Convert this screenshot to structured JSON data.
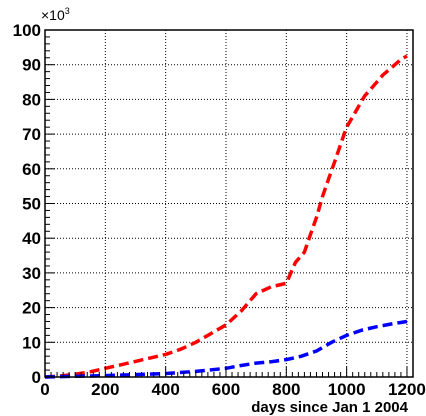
{
  "chart_data": {
    "type": "line",
    "title": "",
    "xlabel": "days since Jan 1 2004",
    "ylabel": "",
    "y_multiplier": {
      "base": "×10",
      "exponent": "3"
    },
    "xlim": [
      0,
      1220
    ],
    "ylim": [
      0,
      100
    ],
    "x_ticks": [
      0,
      200,
      400,
      600,
      800,
      1000,
      1200
    ],
    "y_ticks": [
      0,
      10,
      20,
      30,
      40,
      50,
      60,
      70,
      80,
      90,
      100
    ],
    "grid": true,
    "series": [
      {
        "color": "#ff0000",
        "x": [
          0,
          50,
          100,
          150,
          200,
          250,
          300,
          350,
          400,
          450,
          500,
          550,
          600,
          650,
          700,
          750,
          800,
          830,
          860,
          880,
          900,
          920,
          940,
          960,
          980,
          1000,
          1020,
          1040,
          1060,
          1080,
          1100,
          1120,
          1140,
          1160,
          1180,
          1200
        ],
        "values": [
          0,
          0.3,
          0.8,
          1.5,
          2.5,
          3.5,
          4.5,
          5.5,
          6.5,
          8,
          10,
          12.5,
          15,
          19,
          24,
          26,
          27,
          33,
          36,
          41,
          46,
          52,
          57,
          62,
          67,
          72,
          75,
          78,
          81,
          83,
          85,
          87,
          88.5,
          90,
          91.5,
          92.5
        ]
      },
      {
        "color": "#0000ff",
        "x": [
          0,
          100,
          200,
          300,
          400,
          500,
          600,
          650,
          700,
          750,
          800,
          850,
          900,
          950,
          1000,
          1050,
          1100,
          1150,
          1200
        ],
        "values": [
          0,
          0.2,
          0.4,
          0.7,
          1,
          1.6,
          2.5,
          3.3,
          4,
          4.4,
          5,
          6,
          7.5,
          10,
          12,
          13.5,
          14.5,
          15.3,
          16
        ]
      }
    ]
  }
}
